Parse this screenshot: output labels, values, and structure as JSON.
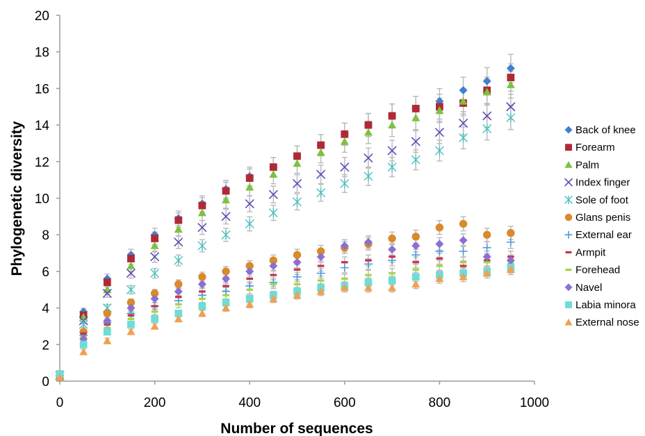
{
  "chart_data": {
    "type": "scatter",
    "title": "",
    "xlabel": "Number of sequences",
    "ylabel": "Phylogenetic diversity",
    "xlim": [
      0,
      1000
    ],
    "ylim": [
      0,
      20
    ],
    "xticks": [
      0,
      200,
      400,
      600,
      800,
      1000
    ],
    "yticks": [
      0,
      2,
      4,
      6,
      8,
      10,
      12,
      14,
      16,
      18,
      20
    ],
    "grid": false,
    "legend": "right",
    "error_bars": true,
    "x": [
      0,
      50,
      100,
      150,
      200,
      250,
      300,
      350,
      400,
      450,
      500,
      550,
      600,
      650,
      700,
      750,
      800,
      850,
      900,
      950
    ],
    "series": [
      {
        "name": "Back of knee",
        "marker": "diamond",
        "color": "#3f7fd0",
        "values": [
          0.3,
          3.8,
          5.6,
          6.9,
          8.0,
          8.9,
          9.7,
          10.5,
          11.2,
          11.7,
          12.3,
          12.9,
          13.5,
          14.0,
          14.5,
          14.9,
          15.3,
          15.9,
          16.4,
          17.1
        ]
      },
      {
        "name": "Forearm",
        "marker": "square",
        "color": "#b02a36",
        "values": [
          0.3,
          3.6,
          5.4,
          6.7,
          7.8,
          8.8,
          9.6,
          10.4,
          11.1,
          11.7,
          12.3,
          12.9,
          13.5,
          14.0,
          14.5,
          14.9,
          15.0,
          15.2,
          15.9,
          16.6
        ]
      },
      {
        "name": "Palm",
        "marker": "triangle",
        "color": "#7cc242",
        "values": [
          0.3,
          3.5,
          5.0,
          6.3,
          7.4,
          8.3,
          9.2,
          9.9,
          10.6,
          11.3,
          11.9,
          12.5,
          13.1,
          13.6,
          14.0,
          14.4,
          14.8,
          15.3,
          15.8,
          16.2
        ]
      },
      {
        "name": "Index finger",
        "marker": "x",
        "color": "#5b4bb6",
        "values": [
          0.3,
          3.3,
          4.8,
          5.9,
          6.8,
          7.6,
          8.4,
          9.0,
          9.7,
          10.2,
          10.8,
          11.3,
          11.7,
          12.2,
          12.6,
          13.1,
          13.6,
          14.1,
          14.5,
          15.0
        ]
      },
      {
        "name": "Sole of foot",
        "marker": "asterisk",
        "color": "#4bbfc0",
        "values": [
          0.3,
          3.1,
          4.0,
          5.0,
          5.9,
          6.6,
          7.4,
          8.0,
          8.6,
          9.2,
          9.8,
          10.3,
          10.8,
          11.2,
          11.7,
          12.1,
          12.6,
          13.3,
          13.8,
          14.4
        ]
      },
      {
        "name": "Glans penis",
        "marker": "circle",
        "color": "#d98a2b",
        "values": [
          0.3,
          2.7,
          3.7,
          4.3,
          4.8,
          5.3,
          5.7,
          6.0,
          6.3,
          6.6,
          6.9,
          7.1,
          7.3,
          7.5,
          7.8,
          7.9,
          8.4,
          8.6,
          8.0,
          8.1
        ]
      },
      {
        "name": "External ear",
        "marker": "plus",
        "color": "#4f9ad6",
        "values": [
          0.3,
          2.5,
          3.2,
          3.7,
          4.1,
          4.4,
          4.7,
          4.9,
          5.2,
          5.4,
          5.7,
          5.9,
          6.2,
          6.4,
          6.6,
          6.9,
          7.1,
          7.1,
          7.3,
          7.6
        ]
      },
      {
        "name": "Armpit",
        "marker": "dash",
        "color": "#c2344a",
        "values": [
          0.3,
          2.6,
          3.1,
          3.6,
          4.1,
          4.6,
          4.9,
          5.2,
          5.6,
          5.8,
          6.1,
          6.3,
          6.5,
          6.6,
          6.8,
          6.5,
          6.7,
          6.3,
          6.6,
          6.8
        ]
      },
      {
        "name": "Forehead",
        "marker": "dash",
        "color": "#a3d63c",
        "values": [
          0.3,
          2.4,
          2.9,
          3.4,
          3.8,
          4.2,
          4.5,
          4.7,
          5.0,
          5.3,
          5.3,
          5.5,
          5.6,
          5.8,
          5.9,
          6.1,
          6.3,
          6.5,
          6.5,
          6.4
        ]
      },
      {
        "name": "Navel",
        "marker": "diamond",
        "color": "#8a6fd4",
        "values": [
          0.3,
          2.3,
          3.3,
          4.0,
          4.5,
          4.9,
          5.3,
          5.6,
          6.0,
          6.3,
          6.5,
          6.8,
          7.4,
          7.6,
          7.2,
          7.4,
          7.5,
          7.7,
          6.8,
          6.6
        ]
      },
      {
        "name": "Labia minora",
        "marker": "square",
        "color": "#6fdcd6",
        "values": [
          0.4,
          2.0,
          2.7,
          3.1,
          3.4,
          3.7,
          4.1,
          4.3,
          4.5,
          4.7,
          4.9,
          5.1,
          5.2,
          5.4,
          5.5,
          5.7,
          5.8,
          5.9,
          6.0,
          6.2
        ]
      },
      {
        "name": "External nose",
        "marker": "triangle",
        "color": "#f0a050",
        "values": [
          0.2,
          1.6,
          2.2,
          2.7,
          3.0,
          3.4,
          3.7,
          4.0,
          4.2,
          4.5,
          4.7,
          4.9,
          5.1,
          5.1,
          5.1,
          5.3,
          5.6,
          5.7,
          5.9,
          6.1
        ]
      }
    ]
  }
}
